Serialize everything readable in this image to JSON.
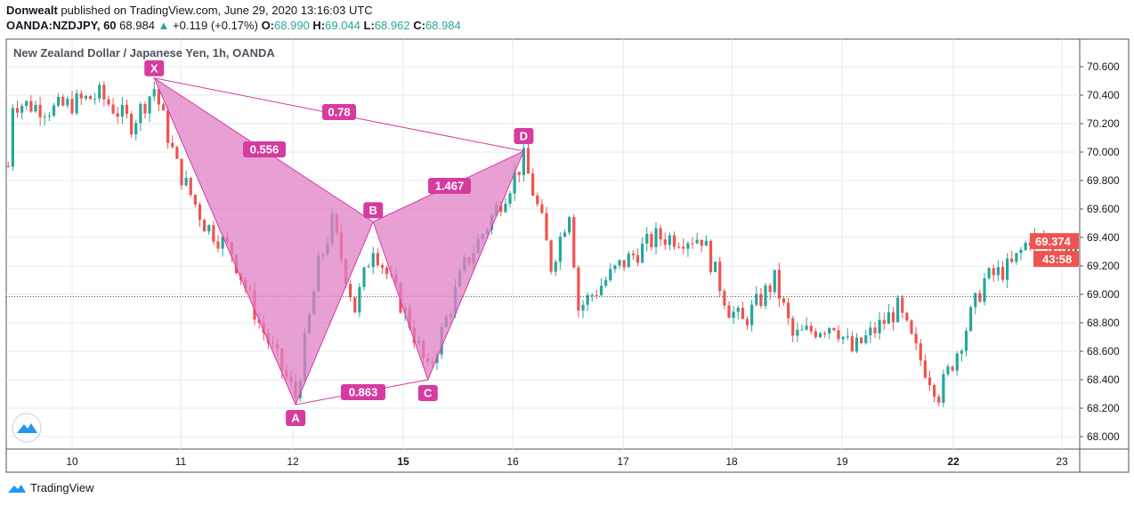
{
  "header": {
    "author": "Donwealt",
    "published": "published on TradingView.com, June 29, 2020 13:16:03 UTC",
    "symbol": "OANDA:NZDJPY, 60",
    "last": "68.984",
    "change": "+0.119 (+0.17%)",
    "o_label": "O:",
    "o": "68.990",
    "h_label": "H:",
    "h": "69.044",
    "l_label": "L:",
    "l": "68.962",
    "c_label": "C:",
    "c": "68.984"
  },
  "footer": {
    "brand": "TradingView"
  },
  "chart_data": {
    "type": "candlestick",
    "title": "New Zealand Dollar / Japanese Yen, 1h, OANDA",
    "x_ticks": [
      "10",
      "11",
      "12",
      "15",
      "16",
      "17",
      "18",
      "19",
      "22",
      "23"
    ],
    "y_ticks": [
      "68.000",
      "68.200",
      "68.400",
      "68.600",
      "68.800",
      "69.000",
      "69.200",
      "69.400",
      "69.600",
      "69.800",
      "70.000",
      "70.200",
      "70.400",
      "70.600"
    ],
    "ylim": [
      67.9,
      70.75
    ],
    "grid": true,
    "current_price": "69.374",
    "countdown": "43:58",
    "reference_line": 68.984,
    "colors": {
      "up": "#26a69a",
      "down": "#ef5350",
      "pattern": "#d63b9f",
      "pattern_fill": "#e07fc4"
    },
    "price_path": [
      [
        "Jun 9 10:00",
        69.9
      ],
      [
        "Jun 9 11:00",
        70.35
      ],
      [
        "Jun 9 20:00",
        70.3
      ],
      [
        "Jun 10 06:00",
        70.4
      ],
      [
        "Jun 10 13:00",
        70.2
      ],
      [
        "Jun 10 18:00",
        70.45
      ],
      [
        "Jun 10 23:00",
        69.9
      ],
      [
        "Jun 11 05:00",
        69.5
      ],
      [
        "Jun 11 11:00",
        69.3
      ],
      [
        "Jun 11 17:00",
        68.8
      ],
      [
        "Jun 12 01:00",
        68.28
      ],
      [
        "Jun 12 06:00",
        69.2
      ],
      [
        "Jun 12 09:00",
        69.5
      ],
      [
        "Jun 12 14:00",
        68.9
      ],
      [
        "Jun 12 18:00",
        69.35
      ],
      [
        "Jun 15 02:00",
        68.8
      ],
      [
        "Jun 15 06:00",
        68.45
      ],
      [
        "Jun 15 14:00",
        69.2
      ],
      [
        "Jun 15 21:00",
        69.6
      ],
      [
        "Jun 16 03:00",
        69.95
      ],
      [
        "Jun 16 07:00",
        69.5
      ],
      [
        "Jun 16 09:00",
        69.2
      ],
      [
        "Jun 16 13:00",
        69.6
      ],
      [
        "Jun 16 15:00",
        68.9
      ],
      [
        "Jun 17 00:00",
        69.2
      ],
      [
        "Jun 17 08:00",
        69.4
      ],
      [
        "Jun 17 18:00",
        69.4
      ],
      [
        "Jun 18 00:00",
        68.9
      ],
      [
        "Jun 18 03:00",
        68.8
      ],
      [
        "Jun 18 10:00",
        69.1
      ],
      [
        "Jun 18 14:00",
        68.7
      ],
      [
        "Jun 18 23:00",
        68.8
      ],
      [
        "Jun 19 03:00",
        68.6
      ],
      [
        "Jun 19 13:00",
        68.9
      ],
      [
        "Jun 19 17:00",
        68.6
      ],
      [
        "Jun 19 22:00",
        68.3
      ],
      [
        "Jun 22 02:00",
        68.6
      ],
      [
        "Jun 22 08:00",
        69.1
      ],
      [
        "Jun 22 14:00",
        69.2
      ],
      [
        "Jun 22 18:00",
        69.4
      ],
      [
        "Jun 23 01:00",
        69.3
      ],
      [
        "Jun 23 04:00",
        69.374
      ]
    ],
    "pattern": {
      "points": [
        {
          "label": "X",
          "time": "Jun 10 18:00",
          "price": 70.52
        },
        {
          "label": "A",
          "time": "Jun 12 01:00",
          "price": 68.225
        },
        {
          "label": "B",
          "time": "Jun 12 18:00",
          "price": 69.51
        },
        {
          "label": "C",
          "time": "Jun 15 06:00",
          "price": 68.4
        },
        {
          "label": "D",
          "time": "Jun 16 03:00",
          "price": 70.006
        }
      ],
      "ratios": {
        "XB": "0.78",
        "XAB": "0.556",
        "BCD": "1.467",
        "AC": "0.863"
      }
    }
  }
}
